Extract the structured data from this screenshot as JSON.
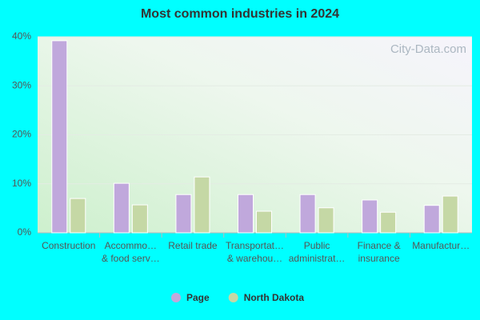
{
  "chart_data": {
    "type": "bar",
    "title": "Most common industries in 2024",
    "watermark": "City-Data.com",
    "categories": [
      [
        "Construction"
      ],
      [
        "Accommo…",
        "& food serv…"
      ],
      [
        "Retail trade"
      ],
      [
        "Transportat…",
        "& warehou…"
      ],
      [
        "Public",
        "administrat…"
      ],
      [
        "Finance &",
        "insurance"
      ],
      [
        "Manufactur…"
      ]
    ],
    "series": [
      {
        "name": "Page",
        "color": "#c0a8dc",
        "values": [
          39.2,
          10.1,
          7.8,
          7.8,
          7.8,
          6.7,
          5.6
        ]
      },
      {
        "name": "North Dakota",
        "color": "#c5d8a5",
        "values": [
          7.0,
          5.7,
          11.4,
          4.4,
          5.1,
          4.2,
          7.5
        ]
      }
    ],
    "ylim": [
      0,
      40
    ],
    "yticks": [
      {
        "value": 0,
        "label": "0%"
      },
      {
        "value": 10,
        "label": "10%"
      },
      {
        "value": 20,
        "label": "20%"
      },
      {
        "value": 30,
        "label": "30%"
      },
      {
        "value": 40,
        "label": "40%"
      }
    ],
    "grid": true
  }
}
